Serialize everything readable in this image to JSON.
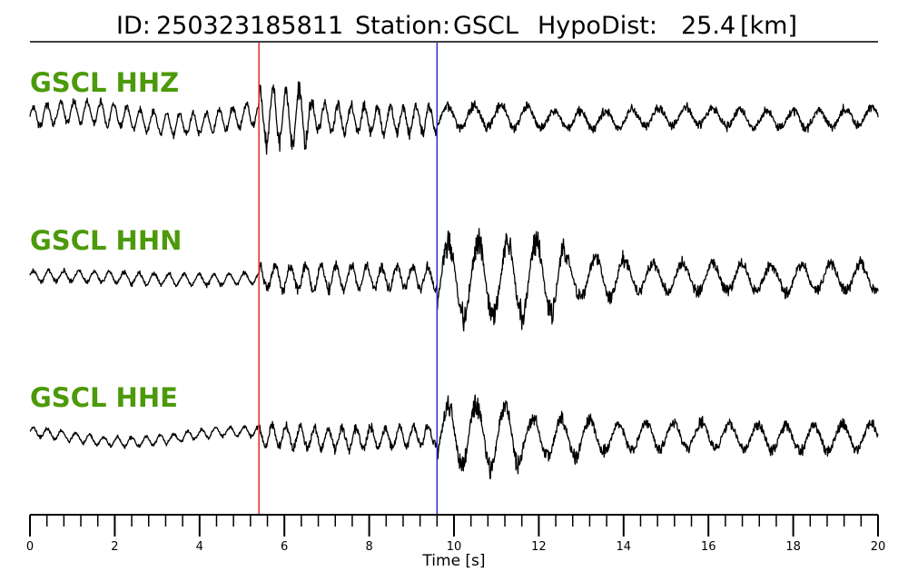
{
  "chart_data": {
    "type": "line",
    "title": {
      "id_label": "ID:",
      "id_value": "250323185811",
      "station_label": "Station:",
      "station_value": "GSCL",
      "hypodist_label": "HypoDist:",
      "hypodist_value": "25.4",
      "hypodist_unit": "[km]"
    },
    "xlabel": "Time [s]",
    "xlim": [
      0,
      20
    ],
    "x_ticks": [
      0,
      2,
      4,
      6,
      8,
      10,
      12,
      14,
      16,
      18,
      20
    ],
    "x_tick_labels": [
      "0",
      "2",
      "4",
      "6",
      "8",
      "10",
      "12",
      "14",
      "16",
      "18",
      "20"
    ],
    "minor_tick_step": 0.4,
    "picks": [
      {
        "phase": "P",
        "time": 5.4,
        "color": "#e8262b"
      },
      {
        "phase": "S",
        "time": 9.6,
        "color": "#2c2cc8"
      }
    ],
    "series": [
      {
        "name": "GSCL HHZ",
        "component": "Z"
      },
      {
        "name": "GSCL HHN",
        "component": "N"
      },
      {
        "name": "GSCL HHE",
        "component": "E"
      }
    ],
    "colors": {
      "trace": "#000000",
      "label": "#4c9a0a"
    }
  }
}
